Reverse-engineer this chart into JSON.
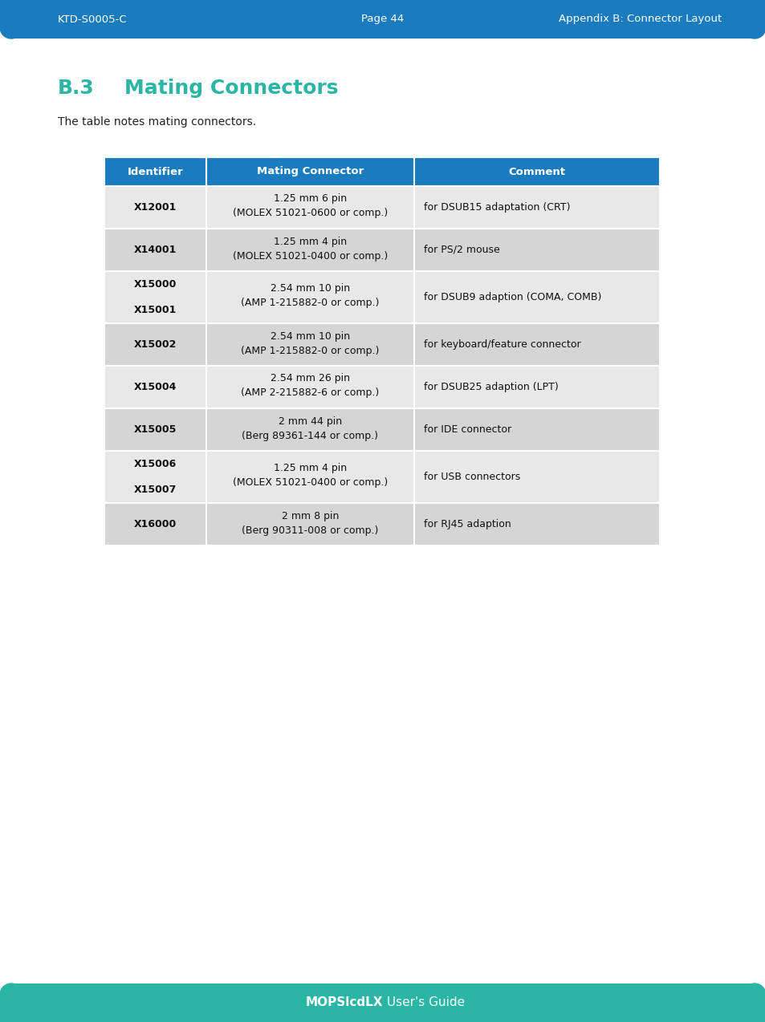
{
  "header_bg": "#1a7bbf",
  "header_text_color": "#ffffff",
  "row_bg_light": "#e8e8e8",
  "row_bg_dark": "#d5d5d5",
  "page_bg": "#ffffff",
  "top_bar_color": "#1a7bbf",
  "bottom_bar_color": "#2ab5a5",
  "title_color": "#2ab5a5",
  "title_number": "B.3",
  "title_text": "Mating Connectors",
  "subtitle": "The table notes mating connectors.",
  "top_bar_left": "KTD-S0005-C",
  "top_bar_center": "Page 44",
  "top_bar_right": "Appendix B: Connector Layout",
  "bottom_bar_text_bold": "MOPSlcdLX",
  "bottom_bar_text_normal": " User's Guide",
  "col_headers": [
    "Identifier",
    "Mating Connector",
    "Comment"
  ],
  "rows": [
    {
      "identifier": "X12001",
      "connector_line1": "1.25 mm 6 pin",
      "connector_line2": "(MOLEX 51021-0600 or comp.)",
      "comment": "for DSUB15 adaptation (CRT)",
      "tall": false
    },
    {
      "identifier": "X14001",
      "connector_line1": "1.25 mm 4 pin",
      "connector_line2": "(MOLEX 51021-0400 or comp.)",
      "comment": "for PS/2 mouse",
      "tall": false
    },
    {
      "identifier": "X15000\n\nX15001",
      "connector_line1": "2.54 mm 10 pin",
      "connector_line2": "(AMP 1-215882-0 or comp.)",
      "comment": "for DSUB9 adaption (COMA, COMB)",
      "tall": true
    },
    {
      "identifier": "X15002",
      "connector_line1": "2.54 mm 10 pin",
      "connector_line2": "(AMP 1-215882-0 or comp.)",
      "comment": "for keyboard/feature connector",
      "tall": false
    },
    {
      "identifier": "X15004",
      "connector_line1": "2.54 mm 26 pin",
      "connector_line2": "(AMP 2-215882-6 or comp.)",
      "comment": "for DSUB25 adaption (LPT)",
      "tall": false
    },
    {
      "identifier": "X15005",
      "connector_line1": "2 mm 44 pin",
      "connector_line2": "(Berg 89361-144 or comp.)",
      "comment": "for IDE connector",
      "tall": false
    },
    {
      "identifier": "X15006\n\nX15007",
      "connector_line1": "1.25 mm 4 pin",
      "connector_line2": "(MOLEX 51021-0400 or comp.)",
      "comment": "for USB connectors",
      "tall": true
    },
    {
      "identifier": "X16000",
      "connector_line1": "2 mm 8 pin",
      "connector_line2": "(Berg 90311-008 or comp.)",
      "comment": "for RJ45 adaption",
      "tall": false
    }
  ]
}
